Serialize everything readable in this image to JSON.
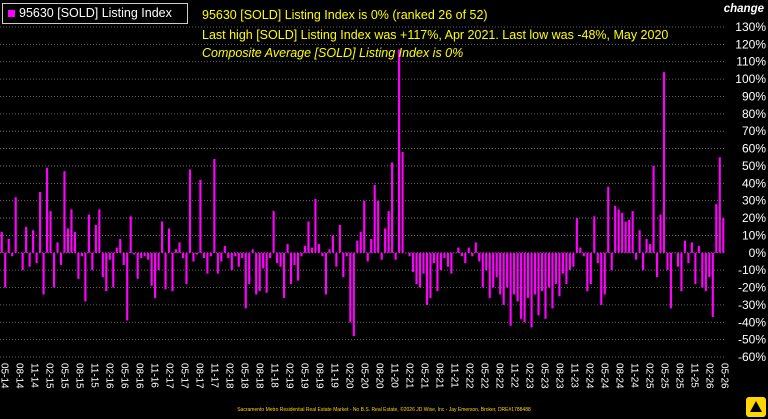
{
  "legend": {
    "label": "95630 [SOLD] Listing Index",
    "color": "#ff00ff"
  },
  "annotations": {
    "line1": "95630 [SOLD] Listing Index is 0% (ranked 26 of 52)",
    "line2": "Last high [SOLD] Listing Index was +117%, Apr 2021. Last low was -48%, May 2020",
    "line3": "Composite Average [SOLD] Listing Index is 0%"
  },
  "axis_title": "change",
  "footer": "Sacramento Metro Residential Real Estate Market - No B.S. Real Estate, ©2026 JD Wise, Inc - Jay Emerson, Broker, DRE#1788488",
  "colors": {
    "background": "#000000",
    "bar": "#ff00ff",
    "grid": "#808080",
    "annotation": "#ffff00",
    "text": "#ffffff"
  },
  "chart_data": {
    "type": "bar",
    "yticks": [
      "130%",
      "120%",
      "110%",
      "100%",
      "90%",
      "80%",
      "70%",
      "60%",
      "50%",
      "40%",
      "30%",
      "20%",
      "10%",
      "0%",
      "-10%",
      "-20%",
      "-30%",
      "-40%",
      "-50%",
      "-60%"
    ],
    "ylim": [
      -60,
      130
    ],
    "x_tick_labels": [
      "05-14",
      "08-14",
      "11-14",
      "02-15",
      "05-15",
      "08-15",
      "11-15",
      "02-16",
      "05-16",
      "08-16",
      "11-16",
      "02-17",
      "05-17",
      "08-17",
      "11-17",
      "02-18",
      "05-18",
      "08-18",
      "11-18",
      "02-19",
      "05-19",
      "08-19",
      "11-19",
      "02-20",
      "05-20",
      "08-20",
      "11-20",
      "02-21",
      "05-21",
      "08-21",
      "11-21",
      "02-22",
      "05-22",
      "08-22",
      "11-22",
      "02-23",
      "05-23",
      "08-23",
      "11-23",
      "02-24",
      "05-24",
      "08-24",
      "11-24",
      "02-25",
      "05-25",
      "08-25",
      "11-25",
      "02-26",
      "05-26"
    ],
    "grid": true,
    "series": [
      {
        "values": [
          12,
          -20,
          8,
          -2,
          32,
          0,
          -10,
          15,
          -8,
          13,
          -6,
          35,
          -24,
          49,
          24,
          -20,
          6,
          -7,
          47,
          14,
          25,
          12,
          -15,
          -2,
          -28,
          22,
          -10,
          16,
          25,
          -14,
          -22,
          -4,
          -20,
          3,
          8,
          -7,
          -39,
          21,
          -1,
          -15,
          -3,
          -2,
          -4,
          -19,
          -26,
          -10,
          18,
          -21,
          14,
          -22,
          2,
          6,
          -3,
          -18,
          48,
          -5,
          -1,
          42,
          -3,
          -12,
          -2,
          54,
          -12,
          -5,
          4,
          -3,
          -10,
          -2,
          -8,
          -3,
          -32,
          -18,
          2,
          -24,
          -22,
          -9,
          -23,
          -3,
          24,
          -6,
          -8,
          -26,
          5,
          -18,
          -7,
          -16,
          -2,
          4,
          18,
          3,
          31,
          5,
          -2,
          -24,
          2,
          10,
          -8,
          16,
          -14,
          -2,
          -40,
          -48,
          7,
          12,
          30,
          -5,
          8,
          39,
          30,
          -4,
          14,
          24,
          52,
          -4,
          117,
          58,
          0,
          -2,
          -11,
          -18,
          -20,
          -12,
          -30,
          -26,
          -6,
          -22,
          -10,
          -3,
          -8,
          -12,
          0,
          3,
          -2,
          -6,
          3,
          -2,
          6,
          -5,
          -20,
          -10,
          -26,
          -20,
          -14,
          -24,
          -30,
          -20,
          -42,
          -24,
          -28,
          -38,
          -40,
          -26,
          -43,
          -24,
          -36,
          -22,
          -38,
          -20,
          -32,
          -18,
          -25,
          -12,
          -18,
          -10,
          -8,
          20,
          3,
          -2,
          -22,
          -18,
          21,
          -6,
          -30,
          -24,
          38,
          -10,
          27,
          25,
          23,
          18,
          19,
          24,
          -4,
          13,
          -10,
          8,
          5,
          50,
          -14,
          22,
          104,
          -10,
          -32,
          0,
          -8,
          -22,
          7,
          -6,
          6,
          -18,
          4,
          -20,
          -22,
          -14,
          -37,
          28,
          55,
          20
        ]
      }
    ]
  }
}
